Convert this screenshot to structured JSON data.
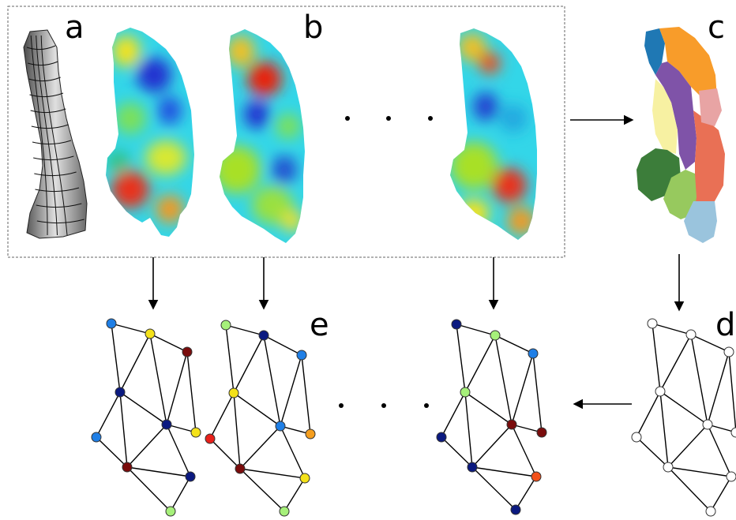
{
  "panels": {
    "a": {
      "letter": "a"
    },
    "b": {
      "letter": "b"
    },
    "c": {
      "letter": "c"
    },
    "d": {
      "letter": "d"
    },
    "e": {
      "letter": "e"
    }
  },
  "ellipsis_glyph": "·",
  "colors": {
    "frame_border": "#666666",
    "arrow": "#000000",
    "edge": "#000000",
    "node_outline": "#333333",
    "node_palette": {
      "dark_blue": "#0b1a80",
      "blue": "#1f7fe6",
      "light_green": "#a6f07a",
      "yellow": "#f4e21a",
      "orange": "#f59e1e",
      "red": "#e8201a",
      "orange_red": "#f2501a",
      "dark_red": "#7a0c0c",
      "white": "#ffffff"
    },
    "parcellation": [
      "#1f78b4",
      "#f89c2a",
      "#7f53a8",
      "#f7f1a2",
      "#e97055",
      "#e8a4a4",
      "#3c7d3a",
      "#97c95e",
      "#9ac4dd"
    ]
  },
  "graphs": {
    "e1": [
      "blue",
      "yellow",
      "dark_red",
      "dark_blue",
      "dark_blue",
      "yellow",
      "blue",
      "dark_red",
      "dark_blue",
      "light_green"
    ],
    "e2": [
      "light_green",
      "dark_blue",
      "blue",
      "yellow",
      "blue",
      "orange",
      "red",
      "dark_red",
      "yellow",
      "light_green"
    ],
    "e3": [
      "dark_blue",
      "light_green",
      "blue",
      "light_green",
      "dark_red",
      "dark_red",
      "dark_blue",
      "dark_blue",
      "orange_red",
      "dark_blue"
    ],
    "d": [
      "white",
      "white",
      "white",
      "white",
      "white",
      "white",
      "white",
      "white",
      "white",
      "white"
    ]
  }
}
